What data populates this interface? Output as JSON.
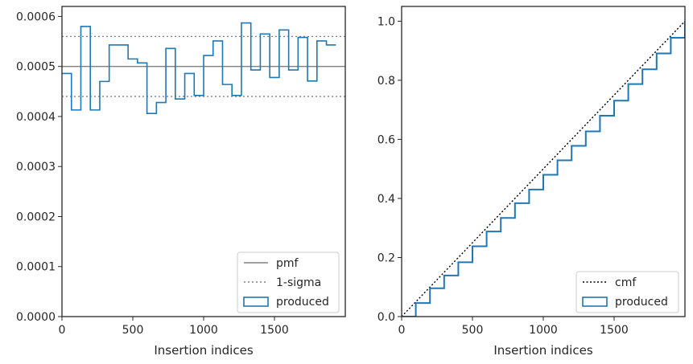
{
  "chart_data": [
    {
      "type": "step",
      "xlabel": "Insertion indices",
      "ylabel": "",
      "xlim": [
        0,
        2000
      ],
      "ylim": [
        0,
        0.00062
      ],
      "xticks": [
        0,
        500,
        1000,
        1500
      ],
      "xtick_labels": [
        "0",
        "500",
        "1000",
        "1500"
      ],
      "yticks": [
        0,
        0.0001,
        0.0002,
        0.0003,
        0.0004,
        0.0005,
        0.0006
      ],
      "ytick_labels": [
        "0.0000",
        "0.0001",
        "0.0002",
        "0.0003",
        "0.0004",
        "0.0005",
        "0.0006"
      ],
      "grid": false,
      "legend_position": "lower right",
      "series": [
        {
          "name": "pmf",
          "style": "solid",
          "color": "#808080",
          "y": 0.0005
        },
        {
          "name": "1-sigma",
          "style": "dotted",
          "color": "#808080",
          "y_values": [
            0.00044,
            0.00056
          ]
        },
        {
          "name": "produced",
          "style": "step-histogram",
          "color": "#1f77b4",
          "bin_width": 66.67,
          "values": [
            0.000486,
            0.000413,
            0.00058,
            0.000413,
            0.00047,
            0.000543,
            0.000543,
            0.000515,
            0.000507,
            0.000406,
            0.000428,
            0.000536,
            0.000435,
            0.000486,
            0.000442,
            0.000522,
            0.000551,
            0.000464,
            0.000442,
            0.000587,
            0.000493,
            0.000565,
            0.000478,
            0.000573,
            0.000493,
            0.000558,
            0.000471,
            0.000551,
            0.000543
          ]
        }
      ]
    },
    {
      "type": "line",
      "xlabel": "Insertion indices",
      "ylabel": "",
      "xlim": [
        0,
        2000
      ],
      "ylim": [
        0,
        1.05
      ],
      "xticks": [
        0,
        500,
        1000,
        1500
      ],
      "xtick_labels": [
        "0",
        "500",
        "1000",
        "1500"
      ],
      "yticks": [
        0,
        0.2,
        0.4,
        0.6,
        0.8,
        1.0
      ],
      "ytick_labels": [
        "0.0",
        "0.2",
        "0.4",
        "0.6",
        "0.8",
        "1.0"
      ],
      "grid": false,
      "legend_position": "lower right",
      "series": [
        {
          "name": "cmf",
          "style": "dotted",
          "color": "#000000",
          "x": [
            0,
            2000
          ],
          "y": [
            0,
            1.0
          ]
        },
        {
          "name": "produced",
          "style": "step-cumulative",
          "color": "#1f77b4",
          "x": [
            0,
            100,
            200,
            300,
            400,
            500,
            600,
            700,
            800,
            900,
            1000,
            1100,
            1200,
            1300,
            1400,
            1500,
            1600,
            1700,
            1800,
            1900,
            2000
          ],
          "y": [
            0,
            0.046,
            0.096,
            0.139,
            0.184,
            0.238,
            0.288,
            0.334,
            0.384,
            0.43,
            0.48,
            0.529,
            0.578,
            0.627,
            0.68,
            0.731,
            0.787,
            0.837,
            0.891,
            0.944,
            1.0
          ]
        }
      ]
    }
  ]
}
